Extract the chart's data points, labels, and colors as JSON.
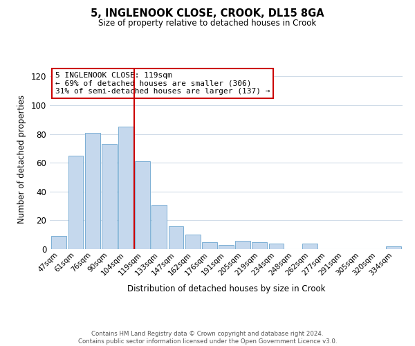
{
  "title": "5, INGLENOOK CLOSE, CROOK, DL15 8GA",
  "subtitle": "Size of property relative to detached houses in Crook",
  "xlabel": "Distribution of detached houses by size in Crook",
  "ylabel": "Number of detached properties",
  "bar_labels": [
    "47sqm",
    "61sqm",
    "76sqm",
    "90sqm",
    "104sqm",
    "119sqm",
    "133sqm",
    "147sqm",
    "162sqm",
    "176sqm",
    "191sqm",
    "205sqm",
    "219sqm",
    "234sqm",
    "248sqm",
    "262sqm",
    "277sqm",
    "291sqm",
    "305sqm",
    "320sqm",
    "334sqm"
  ],
  "bar_values": [
    9,
    65,
    81,
    73,
    85,
    61,
    31,
    16,
    10,
    5,
    3,
    6,
    5,
    4,
    0,
    4,
    0,
    0,
    0,
    0,
    2
  ],
  "bar_color": "#c5d8ed",
  "bar_edge_color": "#7bafd4",
  "reference_line_x": 4.5,
  "reference_line_color": "#cc0000",
  "ylim": [
    0,
    125
  ],
  "yticks": [
    0,
    20,
    40,
    60,
    80,
    100,
    120
  ],
  "annotation_title": "5 INGLENOOK CLOSE: 119sqm",
  "annotation_line1": "← 69% of detached houses are smaller (306)",
  "annotation_line2": "31% of semi-detached houses are larger (137) →",
  "annotation_box_color": "#ffffff",
  "annotation_box_edge_color": "#cc0000",
  "footer_line1": "Contains HM Land Registry data © Crown copyright and database right 2024.",
  "footer_line2": "Contains public sector information licensed under the Open Government Licence v3.0.",
  "bg_color": "#ffffff",
  "grid_color": "#d0dce8"
}
